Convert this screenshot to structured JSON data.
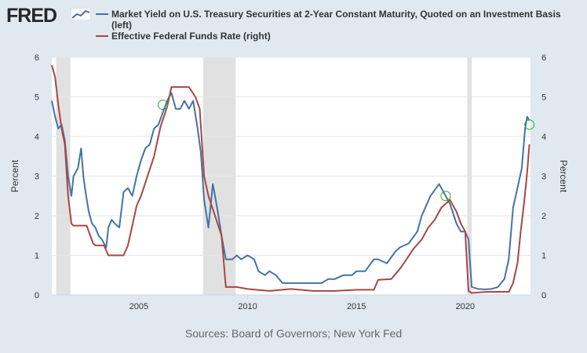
{
  "logo": {
    "text": "FRED"
  },
  "source": "Sources: Board of Governors; New York Fed",
  "colors": {
    "left_series": "#4572a7",
    "right_series": "#aa4643",
    "recession": "#e1e1e1",
    "marker": "#33aa33"
  },
  "chart_data": {
    "type": "line",
    "title": "",
    "xlabel": "",
    "ylabel_left": "Percent",
    "ylabel_right": "Percent",
    "x_range": [
      2001.0,
      2023.0
    ],
    "ylim_left": [
      0,
      6
    ],
    "ylim_right": [
      0,
      6
    ],
    "x_ticks": [
      2005,
      2010,
      2015,
      2020
    ],
    "x_tick_labels": [
      "2005",
      "2010",
      "2015",
      "2020"
    ],
    "y_ticks_left": [
      0,
      1,
      2,
      3,
      4,
      5,
      6
    ],
    "y_tick_labels_left": [
      "0",
      "1",
      "2",
      "3",
      "4",
      "5",
      "6"
    ],
    "y_ticks_right": [
      0,
      1,
      2,
      3,
      4,
      5,
      6
    ],
    "y_tick_labels_right": [
      "0",
      "1",
      "2",
      "3",
      "4",
      "5",
      "6"
    ],
    "grid": "horizontal",
    "legend_position": "top",
    "recessions": [
      [
        2001.2,
        2001.85
      ],
      [
        2007.95,
        2009.45
      ],
      [
        2020.1,
        2020.3
      ]
    ],
    "series": [
      {
        "name": "Market Yield on U.S. Treasury Securities at 2-Year Constant Maturity, Quoted on an Investment Basis (left)",
        "axis": "left",
        "x": [
          2001.0,
          2001.15,
          2001.3,
          2001.45,
          2001.6,
          2001.75,
          2001.9,
          2002.0,
          2002.2,
          2002.35,
          2002.45,
          2002.55,
          2002.7,
          2002.85,
          2003.0,
          2003.15,
          2003.3,
          2003.5,
          2003.6,
          2003.75,
          2003.9,
          2004.1,
          2004.3,
          2004.5,
          2004.7,
          2004.9,
          2005.1,
          2005.3,
          2005.5,
          2005.7,
          2005.9,
          2006.1,
          2006.3,
          2006.5,
          2006.7,
          2006.9,
          2007.1,
          2007.3,
          2007.5,
          2007.7,
          2007.85,
          2008.0,
          2008.2,
          2008.4,
          2008.6,
          2008.8,
          2009.0,
          2009.3,
          2009.5,
          2009.7,
          2010.0,
          2010.3,
          2010.5,
          2010.8,
          2011.0,
          2011.3,
          2011.6,
          2011.9,
          2012.3,
          2012.7,
          2013.0,
          2013.4,
          2013.7,
          2014.0,
          2014.4,
          2014.8,
          2015.0,
          2015.4,
          2015.8,
          2016.0,
          2016.4,
          2016.8,
          2017.0,
          2017.4,
          2017.8,
          2018.0,
          2018.4,
          2018.8,
          2019.0,
          2019.3,
          2019.6,
          2019.8,
          2020.0,
          2020.15,
          2020.3,
          2020.6,
          2020.9,
          2021.2,
          2021.5,
          2021.8,
          2022.0,
          2022.2,
          2022.4,
          2022.6,
          2022.75,
          2022.85,
          2022.95
        ],
        "values": [
          4.9,
          4.5,
          4.2,
          4.3,
          3.9,
          3.0,
          2.5,
          3.0,
          3.2,
          3.7,
          3.0,
          2.6,
          2.1,
          1.8,
          1.7,
          1.5,
          1.4,
          1.2,
          1.7,
          1.9,
          1.8,
          1.7,
          2.6,
          2.7,
          2.5,
          3.0,
          3.4,
          3.7,
          3.8,
          4.2,
          4.3,
          4.6,
          4.9,
          5.1,
          4.7,
          4.7,
          4.9,
          4.7,
          4.9,
          4.2,
          3.6,
          2.4,
          1.7,
          2.8,
          2.2,
          1.5,
          0.9,
          0.9,
          1.0,
          0.9,
          1.0,
          0.9,
          0.6,
          0.5,
          0.6,
          0.5,
          0.3,
          0.3,
          0.3,
          0.3,
          0.3,
          0.3,
          0.4,
          0.4,
          0.5,
          0.5,
          0.6,
          0.6,
          0.9,
          0.9,
          0.8,
          1.1,
          1.2,
          1.3,
          1.6,
          2.0,
          2.5,
          2.8,
          2.6,
          2.3,
          1.8,
          1.6,
          1.6,
          1.4,
          0.2,
          0.15,
          0.14,
          0.15,
          0.2,
          0.4,
          0.9,
          2.2,
          2.7,
          3.2,
          4.2,
          4.5,
          4.4
        ]
      },
      {
        "name": "Effective Federal Funds Rate (right)",
        "axis": "right",
        "x": [
          2001.0,
          2001.15,
          2001.3,
          2001.45,
          2001.6,
          2001.75,
          2001.9,
          2002.0,
          2002.3,
          2002.6,
          2002.9,
          2003.0,
          2003.4,
          2003.6,
          2003.8,
          2004.0,
          2004.3,
          2004.5,
          2004.7,
          2004.9,
          2005.1,
          2005.4,
          2005.7,
          2006.0,
          2006.3,
          2006.5,
          2006.8,
          2007.0,
          2007.3,
          2007.6,
          2007.8,
          2008.0,
          2008.2,
          2008.5,
          2008.8,
          2009.0,
          2009.5,
          2010.0,
          2011.0,
          2012.0,
          2013.0,
          2014.0,
          2015.0,
          2015.8,
          2016.0,
          2016.6,
          2017.0,
          2017.3,
          2017.6,
          2018.0,
          2018.3,
          2018.6,
          2018.9,
          2019.3,
          2019.6,
          2019.8,
          2020.0,
          2020.15,
          2020.3,
          2021.0,
          2021.8,
          2022.0,
          2022.2,
          2022.4,
          2022.55,
          2022.7,
          2022.85,
          2022.95
        ],
        "values": [
          5.8,
          5.5,
          4.8,
          4.2,
          3.8,
          2.5,
          1.8,
          1.75,
          1.75,
          1.75,
          1.3,
          1.25,
          1.25,
          1.0,
          1.0,
          1.0,
          1.0,
          1.25,
          1.75,
          2.25,
          2.5,
          3.0,
          3.5,
          4.25,
          4.75,
          5.25,
          5.25,
          5.25,
          5.25,
          5.0,
          4.7,
          3.0,
          2.5,
          2.0,
          1.5,
          0.2,
          0.2,
          0.15,
          0.1,
          0.15,
          0.1,
          0.1,
          0.13,
          0.13,
          0.38,
          0.4,
          0.66,
          0.9,
          1.15,
          1.4,
          1.7,
          1.9,
          2.2,
          2.4,
          2.1,
          1.8,
          1.6,
          0.1,
          0.05,
          0.08,
          0.08,
          0.08,
          0.3,
          0.8,
          1.6,
          2.3,
          3.1,
          3.8
        ]
      }
    ],
    "markers": [
      {
        "series": 0,
        "x": 2006.1,
        "y": 4.8
      },
      {
        "series": 0,
        "x": 2019.1,
        "y": 2.5
      },
      {
        "series": 1,
        "x": 2022.95,
        "y": 4.3
      }
    ]
  }
}
